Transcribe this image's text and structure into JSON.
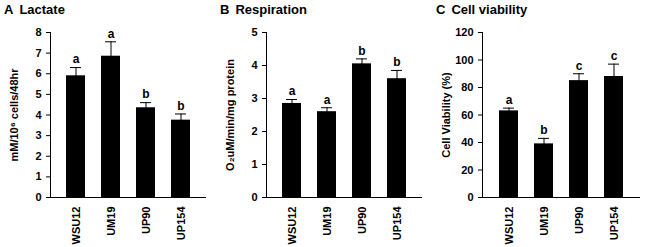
{
  "chart_data": [
    {
      "type": "bar",
      "panel": "A",
      "title": "Lactate",
      "y_label": "mM/10⁶ cells/48hr",
      "categories": [
        "WSU12",
        "UM19",
        "UP90",
        "UP154"
      ],
      "values": [
        5.9,
        6.85,
        4.35,
        3.75
      ],
      "error": [
        0.4,
        0.7,
        0.25,
        0.3
      ],
      "annotations": [
        "a",
        "a",
        "b",
        "b"
      ],
      "color": "#000000",
      "ylim": [
        0,
        8
      ],
      "yticks": [
        0,
        1,
        2,
        3,
        4,
        5,
        6,
        7,
        8
      ],
      "grid": false
    },
    {
      "type": "bar",
      "panel": "B",
      "title": "Respiration",
      "y_label": "O₂uM/min/mg protein",
      "categories": [
        "WSU12",
        "UM19",
        "UP90",
        "UP154"
      ],
      "values": [
        2.85,
        2.6,
        4.05,
        3.6
      ],
      "error": [
        0.12,
        0.12,
        0.15,
        0.25
      ],
      "annotations": [
        "a",
        "a",
        "b",
        "b"
      ],
      "color": "#000000",
      "ylim": [
        0,
        5
      ],
      "yticks": [
        0,
        1,
        2,
        3,
        4,
        5
      ],
      "grid": false
    },
    {
      "type": "bar",
      "panel": "C",
      "title": "Cell viability",
      "y_label": "Cell Viability (%)",
      "categories": [
        "WSU12",
        "UM19",
        "UP90",
        "UP154"
      ],
      "values": [
        63,
        39,
        85,
        88
      ],
      "error": [
        2,
        4,
        5,
        9
      ],
      "annotations": [
        "a",
        "b",
        "c",
        "c"
      ],
      "color": "#000000",
      "ylim": [
        0,
        120
      ],
      "yticks": [
        0,
        20,
        40,
        60,
        80,
        100,
        120
      ],
      "grid": false
    }
  ]
}
